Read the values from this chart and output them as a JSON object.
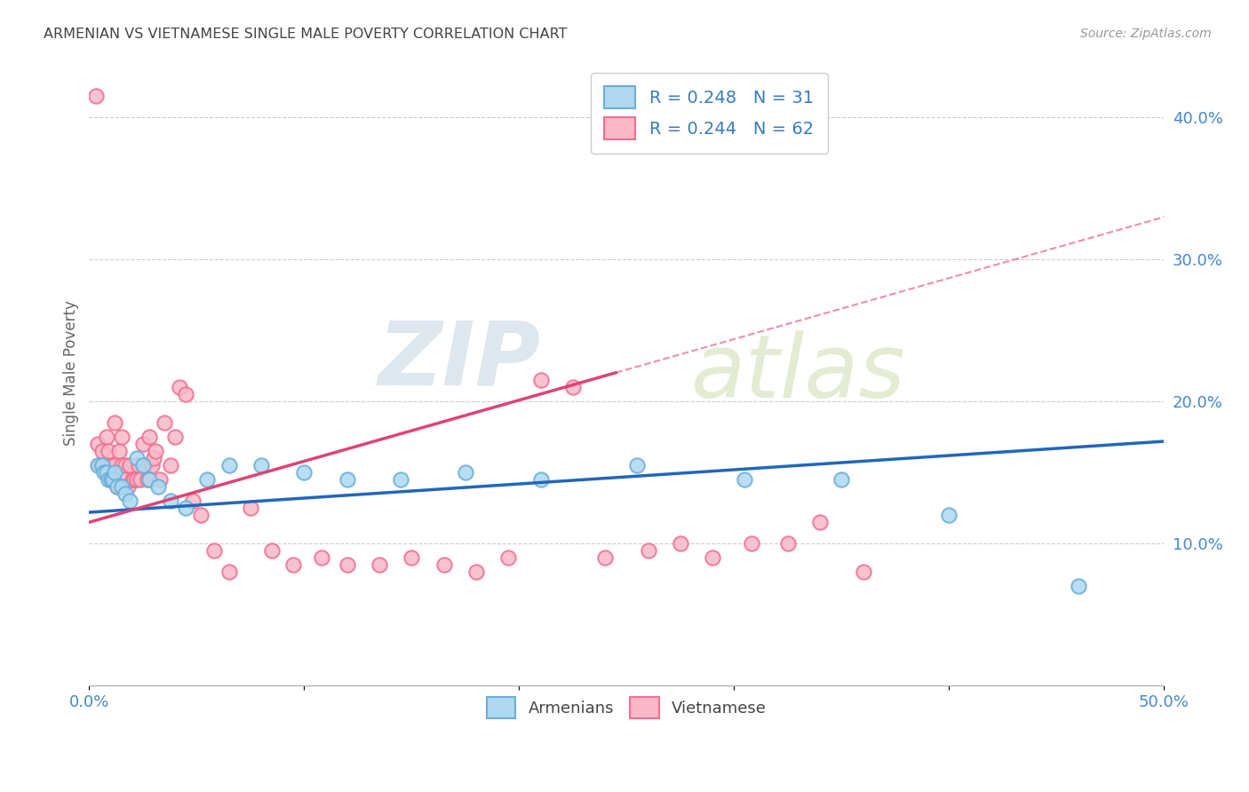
{
  "title": "ARMENIAN VS VIETNAMESE SINGLE MALE POVERTY CORRELATION CHART",
  "source": "Source: ZipAtlas.com",
  "ylabel": "Single Male Poverty",
  "xlim": [
    0.0,
    0.5
  ],
  "ylim": [
    0.0,
    0.44
  ],
  "legend_armenian": "R = 0.248   N = 31",
  "legend_vietnamese": "R = 0.244   N = 62",
  "armenian_edge": "#6aaed6",
  "armenian_face": "#add8f0",
  "vietnamese_edge": "#f07090",
  "vietnamese_face": "#f9b8c8",
  "line_armenian": "#2266bb",
  "line_vietnamese": "#dd4477",
  "watermark_zip": "ZIP",
  "watermark_atlas": "atlas",
  "bg_color": "#ffffff",
  "grid_color": "#cccccc",
  "title_color": "#444444",
  "axis_label_color": "#4488cc",
  "source_color": "#999999",
  "arm_x": [
    0.004,
    0.006,
    0.007,
    0.008,
    0.009,
    0.01,
    0.011,
    0.012,
    0.013,
    0.015,
    0.017,
    0.019,
    0.022,
    0.025,
    0.028,
    0.032,
    0.038,
    0.045,
    0.055,
    0.065,
    0.08,
    0.1,
    0.12,
    0.145,
    0.175,
    0.21,
    0.255,
    0.305,
    0.35,
    0.4,
    0.46
  ],
  "arm_y": [
    0.155,
    0.155,
    0.15,
    0.15,
    0.145,
    0.145,
    0.145,
    0.15,
    0.14,
    0.14,
    0.135,
    0.13,
    0.16,
    0.155,
    0.145,
    0.14,
    0.13,
    0.125,
    0.145,
    0.155,
    0.155,
    0.15,
    0.145,
    0.145,
    0.15,
    0.145,
    0.155,
    0.145,
    0.145,
    0.12,
    0.07
  ],
  "viet_x": [
    0.003,
    0.004,
    0.005,
    0.006,
    0.007,
    0.008,
    0.009,
    0.01,
    0.01,
    0.011,
    0.012,
    0.012,
    0.013,
    0.014,
    0.015,
    0.015,
    0.016,
    0.017,
    0.018,
    0.019,
    0.02,
    0.021,
    0.022,
    0.023,
    0.024,
    0.025,
    0.026,
    0.027,
    0.028,
    0.029,
    0.03,
    0.031,
    0.033,
    0.035,
    0.038,
    0.04,
    0.042,
    0.045,
    0.048,
    0.052,
    0.058,
    0.065,
    0.075,
    0.085,
    0.095,
    0.108,
    0.12,
    0.135,
    0.15,
    0.165,
    0.18,
    0.195,
    0.21,
    0.225,
    0.24,
    0.26,
    0.275,
    0.29,
    0.308,
    0.325,
    0.34,
    0.36
  ],
  "viet_y": [
    0.415,
    0.17,
    0.155,
    0.165,
    0.155,
    0.175,
    0.165,
    0.145,
    0.155,
    0.145,
    0.155,
    0.185,
    0.14,
    0.165,
    0.175,
    0.155,
    0.15,
    0.155,
    0.14,
    0.155,
    0.145,
    0.145,
    0.145,
    0.155,
    0.145,
    0.17,
    0.155,
    0.145,
    0.175,
    0.155,
    0.16,
    0.165,
    0.145,
    0.185,
    0.155,
    0.175,
    0.21,
    0.205,
    0.13,
    0.12,
    0.095,
    0.08,
    0.125,
    0.095,
    0.085,
    0.09,
    0.085,
    0.085,
    0.09,
    0.085,
    0.08,
    0.09,
    0.215,
    0.21,
    0.09,
    0.095,
    0.1,
    0.09,
    0.1,
    0.1,
    0.115,
    0.08
  ]
}
